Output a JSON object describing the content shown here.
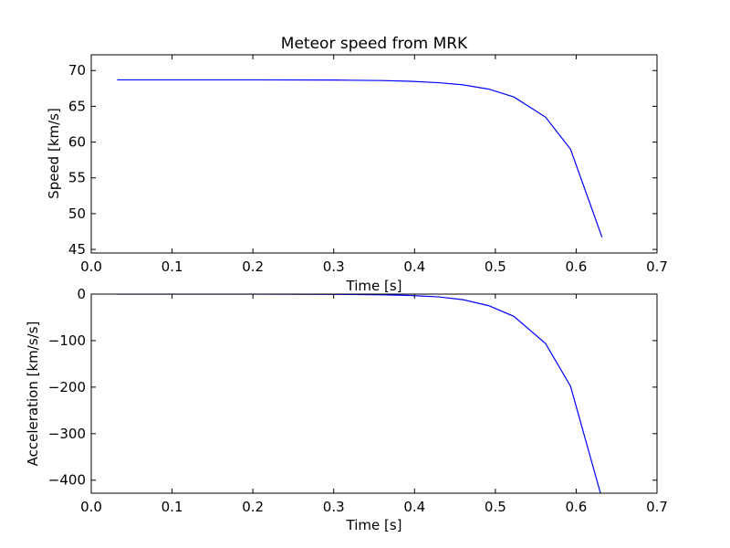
{
  "chart_data": [
    {
      "type": "line",
      "title": "Meteor speed from  MRK",
      "xlabel": "Time [s]",
      "ylabel": "Speed [km/s]",
      "xlim": [
        0.0,
        0.7
      ],
      "ylim": [
        44.5,
        72.2
      ],
      "xticks": [
        "0.0",
        "0.1",
        "0.2",
        "0.3",
        "0.4",
        "0.5",
        "0.6",
        "0.7"
      ],
      "yticks": [
        "45",
        "50",
        "55",
        "60",
        "65",
        "70"
      ],
      "grid": false,
      "color": "#0000ff",
      "series": [
        {
          "x": [
            0.032,
            0.1,
            0.2,
            0.3,
            0.36,
            0.395,
            0.43,
            0.46,
            0.492,
            0.523,
            0.562,
            0.593,
            0.632
          ],
          "y": [
            68.7,
            68.7,
            68.7,
            68.67,
            68.6,
            68.5,
            68.3,
            68.0,
            67.4,
            66.3,
            63.5,
            59.0,
            46.7
          ]
        }
      ]
    },
    {
      "type": "line",
      "title": "",
      "xlabel": "Time [s]",
      "ylabel": "Acceleration [km/s/s]",
      "xlim": [
        0.0,
        0.7
      ],
      "ylim": [
        -428,
        0
      ],
      "xticks": [
        "0.0",
        "0.1",
        "0.2",
        "0.3",
        "0.4",
        "0.5",
        "0.6",
        "0.7"
      ],
      "yticks": [
        "0",
        "−100",
        "−200",
        "−300",
        "−400"
      ],
      "ytick_values": [
        0,
        -100,
        -200,
        -300,
        -400
      ],
      "grid": false,
      "color": "#0000ff",
      "series": [
        {
          "x": [
            0.032,
            0.1,
            0.2,
            0.3,
            0.36,
            0.395,
            0.43,
            0.46,
            0.492,
            0.523,
            0.562,
            0.593,
            0.632
          ],
          "y": [
            0,
            0,
            0,
            -0.5,
            -1.5,
            -3,
            -6,
            -12,
            -25,
            -48,
            -106,
            -198,
            -440
          ]
        }
      ]
    }
  ]
}
